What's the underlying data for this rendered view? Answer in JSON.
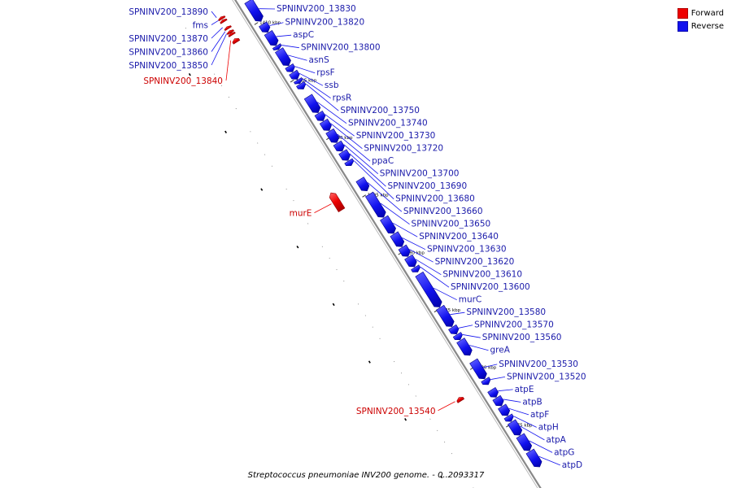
{
  "legend": [
    {
      "label": "Forward",
      "color": "#ee0000"
    },
    {
      "label": "Reverse",
      "color": "#1111ee"
    }
  ],
  "caption": "Streptococcus pneumoniae INV200 genome. - 0..2093317",
  "colors": {
    "forward": "#ee0000",
    "reverse": "#1111ee",
    "forward_label": "#cc0000",
    "reverse_label": "#1a1aaa",
    "backbone": "#888888"
  },
  "scale_ticks": [
    "1410 kbp",
    "1405 kbp",
    "1400 kbp",
    "1395 kbp",
    "1390 kbp",
    "1385 kbp",
    "1380 kbp",
    "1375 kbp"
  ],
  "genes": [
    {
      "name": "SPNINV200_13890",
      "strand": "forward",
      "start": 1411650,
      "end": 1411800
    },
    {
      "name": "fms",
      "strand": "forward",
      "start": 1411400,
      "end": 1411550
    },
    {
      "name": "SPNINV200_13870",
      "strand": "forward",
      "start": 1410800,
      "end": 1410950
    },
    {
      "name": "SPNINV200_13860",
      "strand": "forward",
      "start": 1410450,
      "end": 1410600
    },
    {
      "name": "SPNINV200_13850",
      "strand": "forward",
      "start": 1410250,
      "end": 1410400
    },
    {
      "name": "SPNINV200_13840",
      "strand": "forward",
      "start": 1409600,
      "end": 1409900
    },
    {
      "name": "SPNINV200_13830",
      "strand": "reverse",
      "start": 1409950,
      "end": 1411700
    },
    {
      "name": "SPNINV200_13820",
      "strand": "reverse",
      "start": 1409000,
      "end": 1409700
    },
    {
      "name": "aspC",
      "strand": "reverse",
      "start": 1407850,
      "end": 1408950
    },
    {
      "name": "SPNINV200_13800",
      "strand": "reverse",
      "start": 1407500,
      "end": 1407800
    },
    {
      "name": "asnS",
      "strand": "reverse",
      "start": 1406100,
      "end": 1407450
    },
    {
      "name": "rpsF",
      "strand": "reverse",
      "start": 1405550,
      "end": 1406050
    },
    {
      "name": "ssb",
      "strand": "reverse",
      "start": 1404900,
      "end": 1405500
    },
    {
      "name": "rpsR",
      "strand": "reverse",
      "start": 1404550,
      "end": 1404850
    },
    {
      "name": "SPNINV200_13750",
      "strand": "reverse",
      "start": 1404050,
      "end": 1404500
    },
    {
      "name": "SPNINV200_13740",
      "strand": "reverse",
      "start": 1402000,
      "end": 1403400
    },
    {
      "name": "SPNINV200_13730",
      "strand": "reverse",
      "start": 1401300,
      "end": 1401950
    },
    {
      "name": "SPNINV200_13720",
      "strand": "reverse",
      "start": 1400450,
      "end": 1401250
    },
    {
      "name": "ppaC",
      "strand": "reverse",
      "start": 1399400,
      "end": 1400400
    },
    {
      "name": "SPNINV200_13700",
      "strand": "reverse",
      "start": 1398650,
      "end": 1399350
    },
    {
      "name": "SPNINV200_13690",
      "strand": "reverse",
      "start": 1397850,
      "end": 1398600
    },
    {
      "name": "SPNINV200_13680",
      "strand": "reverse",
      "start": 1397400,
      "end": 1397800
    },
    {
      "name": "SPNINV200_13660",
      "strand": "reverse",
      "start": 1395200,
      "end": 1396200
    },
    {
      "name": "murE",
      "strand": "forward",
      "start": 1395000,
      "end": 1396500
    },
    {
      "name": "SPNINV200_13650",
      "strand": "reverse",
      "start": 1392900,
      "end": 1394900
    },
    {
      "name": "SPNINV200_13640",
      "strand": "reverse",
      "start": 1391500,
      "end": 1392850
    },
    {
      "name": "SPNINV200_13630",
      "strand": "reverse",
      "start": 1390350,
      "end": 1391450
    },
    {
      "name": "SPNINV200_13620",
      "strand": "reverse",
      "start": 1389500,
      "end": 1390300
    },
    {
      "name": "SPNINV200_13610",
      "strand": "reverse",
      "start": 1388600,
      "end": 1389450
    },
    {
      "name": "SPNINV200_13600",
      "strand": "reverse",
      "start": 1388150,
      "end": 1388550
    },
    {
      "name": "murC",
      "strand": "reverse",
      "start": 1385100,
      "end": 1387950
    },
    {
      "name": "SPNINV200_13580",
      "strand": "reverse",
      "start": 1383400,
      "end": 1385050
    },
    {
      "name": "SPNINV200_13570",
      "strand": "reverse",
      "start": 1382750,
      "end": 1383350
    },
    {
      "name": "SPNINV200_13560",
      "strand": "reverse",
      "start": 1382250,
      "end": 1382700
    },
    {
      "name": "greA",
      "strand": "reverse",
      "start": 1380900,
      "end": 1382200
    },
    {
      "name": "SPNINV200_13530",
      "strand": "reverse",
      "start": 1378850,
      "end": 1380400
    },
    {
      "name": "SPNINV200_13540",
      "strand": "forward",
      "start": 1378400,
      "end": 1378700
    },
    {
      "name": "SPNINV200_13520",
      "strand": "reverse",
      "start": 1378350,
      "end": 1378800
    },
    {
      "name": "atpE",
      "strand": "reverse",
      "start": 1377250,
      "end": 1377900
    },
    {
      "name": "atpB",
      "strand": "reverse",
      "start": 1376500,
      "end": 1377200
    },
    {
      "name": "atpF",
      "strand": "reverse",
      "start": 1375650,
      "end": 1376450
    },
    {
      "name": "atpH",
      "strand": "reverse",
      "start": 1375150,
      "end": 1375600
    },
    {
      "name": "atpA",
      "strand": "reverse",
      "start": 1373950,
      "end": 1375100
    },
    {
      "name": "atpG",
      "strand": "reverse",
      "start": 1372600,
      "end": 1373900
    },
    {
      "name": "atpD",
      "strand": "reverse",
      "start": 1371200,
      "end": 1372550
    }
  ]
}
